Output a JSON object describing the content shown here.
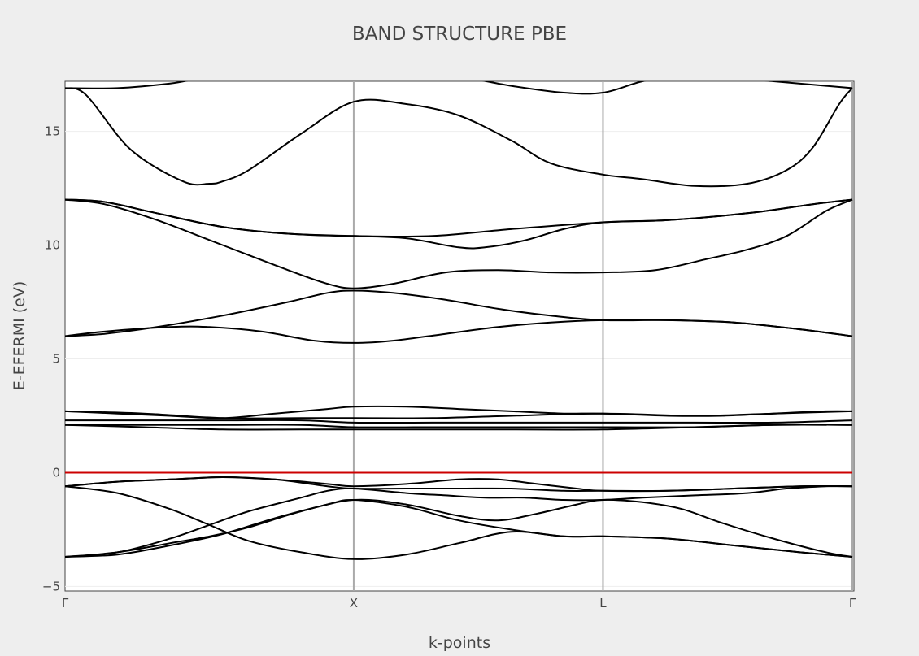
{
  "chart_data": {
    "type": "line",
    "title": "BAND STRUCTURE PBE",
    "xlabel": "k-points",
    "ylabel": "E-EFERMI (eV)",
    "ylim": [
      -5.2,
      17.2
    ],
    "xlim": [
      0,
      3
    ],
    "y_ticks": [
      -5,
      0,
      5,
      10,
      15
    ],
    "y_tick_labels": [
      "−5",
      "0",
      "5",
      "10",
      "15"
    ],
    "k_points": [
      {
        "label": "Γ",
        "x": 0
      },
      {
        "label": "X",
        "x": 1.1
      },
      {
        "label": "L",
        "x": 2.05
      },
      {
        "label": "Γ",
        "x": 3
      }
    ],
    "grid": true,
    "legend": "none",
    "colors": {
      "bands": "#000000",
      "fermi_level": "#cc0000",
      "k_point_lines": "#aaaaaa",
      "grid": "#eeeeee",
      "plot_background": "#ffffff",
      "paper_background": "#eeeeee"
    },
    "fermi_level": 0,
    "series": [
      {
        "x": [
          0,
          0.08,
          0.25,
          0.45,
          0.55,
          0.6,
          0.7,
          0.9,
          1.1,
          1.3,
          1.5,
          1.7,
          1.85,
          2.05,
          2.2,
          2.4,
          2.6,
          2.75,
          2.85,
          2.95,
          3
        ],
        "values": [
          16.9,
          16.6,
          14.2,
          12.8,
          12.7,
          12.8,
          13.3,
          14.9,
          16.3,
          16.2,
          15.7,
          14.6,
          13.6,
          13.1,
          12.9,
          12.6,
          12.7,
          13.3,
          14.3,
          16.2,
          16.9
        ]
      },
      {
        "x": [
          0,
          0.2,
          0.4,
          0.5,
          0.6,
          0.8,
          0.95,
          1.1,
          1.3,
          1.5,
          1.7,
          1.9,
          2.05,
          2.2,
          2.35,
          2.5,
          2.7,
          2.9,
          3
        ],
        "values": [
          16.9,
          16.9,
          17.1,
          17.3,
          17.4,
          17.5,
          17.5,
          17.5,
          17.5,
          17.4,
          17.0,
          16.7,
          16.7,
          17.2,
          17.5,
          17.4,
          17.2,
          17.0,
          16.9
        ]
      },
      {
        "x": [
          0,
          0.15,
          0.35,
          0.6,
          0.85,
          1.1,
          1.4,
          1.7,
          2.05,
          2.3,
          2.6,
          2.85,
          3
        ],
        "values": [
          12.0,
          11.9,
          11.4,
          10.8,
          10.5,
          10.4,
          10.4,
          10.7,
          11.0,
          11.1,
          11.4,
          11.8,
          12.0
        ]
      },
      {
        "x": [
          0,
          0.15,
          0.35,
          0.6,
          0.85,
          1.1,
          1.3,
          1.5,
          1.6,
          1.75,
          1.9,
          2.05,
          2.3,
          2.6,
          2.85,
          3
        ],
        "values": [
          12.0,
          11.9,
          11.4,
          10.8,
          10.5,
          10.4,
          10.3,
          9.9,
          9.9,
          10.2,
          10.7,
          11.0,
          11.1,
          11.4,
          11.8,
          12.0
        ]
      },
      {
        "x": [
          0,
          0.15,
          0.35,
          0.6,
          0.85,
          1.0,
          1.1,
          1.25,
          1.45,
          1.65,
          1.85,
          2.05,
          2.25,
          2.45,
          2.6,
          2.75,
          2.9,
          3
        ],
        "values": [
          12.0,
          11.8,
          11.1,
          10.0,
          8.9,
          8.3,
          8.1,
          8.3,
          8.8,
          8.9,
          8.8,
          8.8,
          8.9,
          9.4,
          9.8,
          10.4,
          11.5,
          12.0
        ]
      },
      {
        "x": [
          0,
          0.15,
          0.35,
          0.6,
          0.85,
          1.0,
          1.1,
          1.25,
          1.45,
          1.65,
          1.85,
          2.05,
          2.3,
          2.55,
          2.8,
          3
        ],
        "values": [
          6.0,
          6.1,
          6.4,
          6.9,
          7.5,
          7.9,
          8.0,
          7.9,
          7.6,
          7.2,
          6.9,
          6.7,
          6.7,
          6.6,
          6.3,
          6.0
        ]
      },
      {
        "x": [
          0,
          0.15,
          0.4,
          0.55,
          0.75,
          0.95,
          1.1,
          1.25,
          1.45,
          1.65,
          1.85,
          2.05,
          2.3,
          2.55,
          2.8,
          3
        ],
        "values": [
          6.0,
          6.2,
          6.4,
          6.4,
          6.2,
          5.8,
          5.7,
          5.8,
          6.1,
          6.4,
          6.6,
          6.7,
          6.7,
          6.6,
          6.3,
          6.0
        ]
      },
      {
        "x": [
          0,
          0.2,
          0.4,
          0.6,
          0.8,
          1.0,
          1.1,
          1.3,
          1.5,
          1.7,
          1.9,
          2.05,
          2.3,
          2.5,
          2.7,
          2.9,
          3
        ],
        "values": [
          2.7,
          2.6,
          2.5,
          2.4,
          2.6,
          2.8,
          2.9,
          2.9,
          2.8,
          2.7,
          2.6,
          2.6,
          2.5,
          2.5,
          2.6,
          2.7,
          2.7
        ]
      },
      {
        "x": [
          0,
          0.3,
          0.6,
          0.9,
          1.1,
          1.4,
          1.7,
          2.05,
          2.4,
          2.7,
          3
        ],
        "values": [
          2.7,
          2.6,
          2.4,
          2.4,
          2.4,
          2.4,
          2.5,
          2.6,
          2.5,
          2.6,
          2.7
        ]
      },
      {
        "x": [
          0,
          0.3,
          0.6,
          0.9,
          1.1,
          1.4,
          1.7,
          2.05,
          2.4,
          2.7,
          3
        ],
        "values": [
          2.3,
          2.3,
          2.3,
          2.3,
          2.2,
          2.2,
          2.2,
          2.2,
          2.2,
          2.2,
          2.3
        ]
      },
      {
        "x": [
          0,
          0.3,
          0.6,
          0.9,
          1.1,
          1.4,
          1.7,
          2.05,
          2.4,
          2.7,
          3
        ],
        "values": [
          2.1,
          2.1,
          2.1,
          2.1,
          2.0,
          2.0,
          2.0,
          2.0,
          2.0,
          2.1,
          2.1
        ]
      },
      {
        "x": [
          0,
          0.3,
          0.6,
          0.9,
          1.1,
          1.4,
          1.7,
          2.05,
          2.4,
          2.7,
          3
        ],
        "values": [
          2.1,
          2.0,
          1.9,
          1.9,
          1.9,
          1.9,
          1.9,
          1.9,
          2.0,
          2.1,
          2.1
        ]
      },
      {
        "x": [
          0,
          0.2,
          0.4,
          0.6,
          0.8,
          1.0,
          1.1,
          1.3,
          1.5,
          1.65,
          1.8,
          1.95,
          2.05,
          2.3,
          2.55,
          2.8,
          3
        ],
        "values": [
          -0.6,
          -0.4,
          -0.3,
          -0.2,
          -0.3,
          -0.5,
          -0.6,
          -0.5,
          -0.3,
          -0.3,
          -0.5,
          -0.7,
          -0.8,
          -0.8,
          -0.7,
          -0.6,
          -0.6
        ]
      },
      {
        "x": [
          0,
          0.2,
          0.4,
          0.6,
          0.8,
          1.0,
          1.1,
          1.3,
          1.5,
          1.7,
          1.9,
          2.05,
          2.3,
          2.55,
          2.8,
          3
        ],
        "values": [
          -0.6,
          -0.4,
          -0.3,
          -0.2,
          -0.3,
          -0.6,
          -0.7,
          -0.7,
          -0.7,
          -0.7,
          -0.8,
          -0.8,
          -0.8,
          -0.7,
          -0.6,
          -0.6
        ]
      },
      {
        "x": [
          0,
          0.2,
          0.4,
          0.55,
          0.7,
          0.9,
          1.1,
          1.3,
          1.5,
          1.7,
          1.9,
          2.05,
          2.3,
          2.55,
          2.8,
          3
        ],
        "values": [
          -0.6,
          -0.9,
          -1.6,
          -2.3,
          -3.0,
          -3.5,
          -3.8,
          -3.6,
          -3.1,
          -2.6,
          -2.8,
          -2.8,
          -2.9,
          -3.2,
          -3.5,
          -3.7
        ]
      },
      {
        "x": [
          0,
          0.2,
          0.4,
          0.55,
          0.7,
          0.9,
          1.0,
          1.1,
          1.3,
          1.45,
          1.6,
          1.75,
          1.9,
          2.05,
          2.2,
          2.4,
          2.6,
          2.75,
          2.9,
          3
        ],
        "values": [
          -3.7,
          -3.5,
          -2.9,
          -2.3,
          -1.7,
          -1.1,
          -0.8,
          -0.7,
          -0.9,
          -1.0,
          -1.1,
          -1.1,
          -1.2,
          -1.2,
          -1.1,
          -1.0,
          -0.9,
          -0.7,
          -0.6,
          -0.6
        ]
      },
      {
        "x": [
          0,
          0.2,
          0.4,
          0.55,
          0.7,
          0.9,
          1.1,
          1.3,
          1.5,
          1.65,
          1.8,
          1.95,
          2.05,
          2.2,
          2.35,
          2.5,
          2.7,
          2.9,
          3
        ],
        "values": [
          -3.7,
          -3.5,
          -3.1,
          -2.8,
          -2.4,
          -1.7,
          -1.2,
          -1.4,
          -1.9,
          -2.1,
          -1.8,
          -1.4,
          -1.2,
          -1.3,
          -1.6,
          -2.2,
          -2.9,
          -3.5,
          -3.7
        ]
      },
      {
        "x": [
          0,
          0.2,
          0.4,
          0.6,
          0.8,
          1.0,
          1.1,
          1.3,
          1.5,
          1.7,
          1.9,
          2.05,
          2.3,
          2.55,
          2.8,
          3
        ],
        "values": [
          -3.7,
          -3.6,
          -3.2,
          -2.7,
          -2.0,
          -1.4,
          -1.2,
          -1.5,
          -2.1,
          -2.5,
          -2.8,
          -2.8,
          -2.9,
          -3.2,
          -3.5,
          -3.7
        ]
      }
    ]
  }
}
